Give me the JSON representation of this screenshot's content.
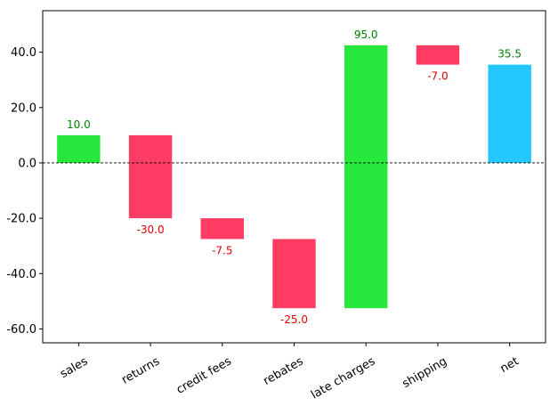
{
  "chart_data": {
    "type": "bar",
    "subtype": "waterfall",
    "title": "",
    "xlabel": "",
    "ylabel": "",
    "categories": [
      "sales",
      "returns",
      "credit fees",
      "rebates",
      "late charges",
      "shipping",
      "net"
    ],
    "values": [
      10.0,
      -30.0,
      -7.5,
      -25.0,
      95.0,
      -7.0,
      35.5
    ],
    "bar_bottoms": [
      0.0,
      -20.0,
      -27.5,
      -52.5,
      -52.5,
      35.5,
      0.0
    ],
    "bar_tops": [
      10.0,
      10.0,
      -20.0,
      -27.5,
      42.5,
      42.5,
      35.5
    ],
    "value_labels": [
      "10.0",
      "-30.0",
      "-7.5",
      "-25.0",
      "95.0",
      "-7.0",
      "35.5"
    ],
    "bar_kinds": [
      "increase",
      "decrease",
      "decrease",
      "decrease",
      "increase",
      "decrease",
      "total"
    ],
    "ylim": [
      -65,
      55
    ],
    "yticks": [
      -60,
      -40,
      -20,
      0,
      20,
      40
    ],
    "ytick_labels": [
      "-60.0",
      "-40.0",
      "-20.0",
      "0.0",
      "20.0",
      "40.0"
    ],
    "zero_line": true,
    "grid": false,
    "colors": {
      "increase": "#27e83d",
      "decrease": "#ff3c64",
      "total": "#22c8ff",
      "label_positive": "#008000",
      "label_negative": "#e00000",
      "axis": "#000000"
    }
  }
}
